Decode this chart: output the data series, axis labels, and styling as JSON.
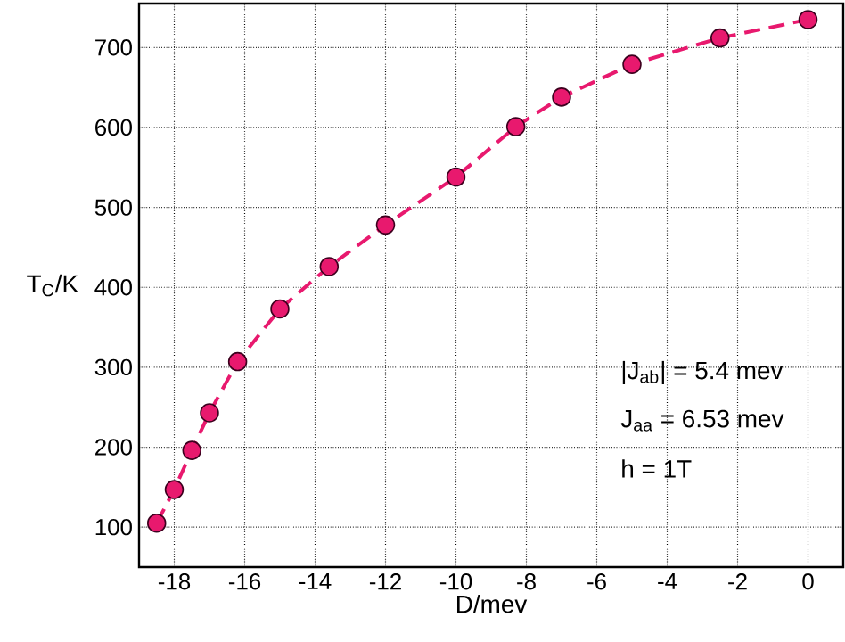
{
  "chart_data": {
    "type": "line",
    "xlabel": "D/mev",
    "ylabel": "T$_{C}$/K",
    "x": [
      -18.5,
      -18,
      -17.5,
      -17,
      -16.2,
      -15,
      -13.6,
      -12,
      -10,
      -8.3,
      -7,
      -5,
      -2.5,
      0
    ],
    "series": [
      {
        "color": "#e8196e",
        "values": [
          105,
          147,
          196,
          243,
          307,
          373,
          426,
          478,
          538,
          601,
          638,
          679,
          712,
          735
        ]
      }
    ],
    "xlim": [
      -19,
      1
    ],
    "ylim": [
      50,
      755
    ],
    "xticks": [
      -18,
      -16,
      -14,
      -12,
      -10,
      -8,
      -6,
      -4,
      -2,
      0
    ],
    "yticks": [
      100,
      200,
      300,
      400,
      500,
      600,
      700
    ],
    "grid": true,
    "marker": "circle",
    "line_style": "dashed",
    "annotations": [
      "|J$_{ab}$| = 5.4 mev",
      "J$_{aa}$ = 6.53 mev",
      "h = 1T"
    ]
  }
}
